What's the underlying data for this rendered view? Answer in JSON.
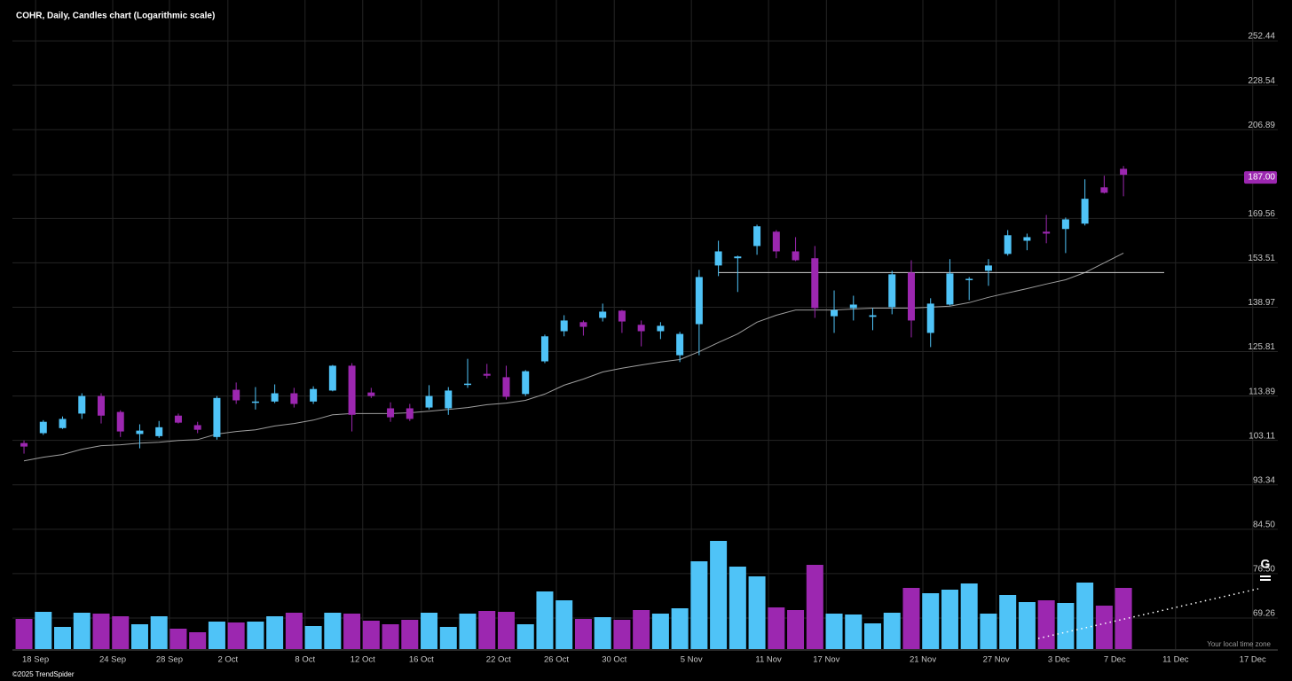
{
  "chart_data": {
    "type": "candlestick",
    "title": "COHR, Daily, Candles chart (Logarithmic scale)",
    "log_scale": true,
    "grid": true,
    "up_color": "#4fc3f7",
    "down_color": "#9c27b0",
    "open": [
      102.5,
      104.8,
      106.0,
      109.5,
      113.9,
      109.9,
      104.6,
      104.1,
      109.0,
      106.7,
      103.9,
      115.5,
      112.3,
      112.5,
      114.6,
      112.5,
      115.3,
      121.9,
      114.8,
      110.8,
      110.8,
      111.0,
      110.8,
      116.9,
      119.7,
      118.8,
      114.4,
      123.1,
      131.7,
      134.4,
      135.7,
      137.9,
      133.6,
      131.7,
      124.8,
      133.8,
      152.6,
      155.1,
      159.4,
      164.6,
      157.5,
      155.1,
      136.2,
      138.7,
      136.0,
      139.0,
      150.2,
      131.2,
      139.8,
      147.8,
      150.8,
      156.6,
      161.3,
      164.6,
      165.6,
      167.6,
      181.8,
      189.5
    ],
    "high": [
      103.1,
      107.9,
      108.8,
      114.6,
      114.6,
      110.3,
      106.9,
      107.7,
      109.5,
      107.5,
      113.9,
      117.4,
      116.2,
      116.9,
      116.0,
      116.4,
      122.1,
      122.6,
      116.0,
      112.3,
      111.9,
      116.7,
      116.2,
      123.8,
      122.4,
      121.9,
      120.7,
      130.7,
      136.5,
      134.9,
      140.1,
      138.1,
      134.9,
      134.4,
      131.5,
      151.1,
      161.3,
      156.0,
      167.2,
      165.2,
      162.6,
      159.4,
      144.3,
      142.6,
      138.7,
      150.8,
      154.4,
      141.8,
      154.8,
      148.7,
      154.8,
      165.2,
      163.9,
      170.9,
      169.9,
      185.1,
      186.6,
      190.7
    ],
    "low": [
      100.1,
      104.4,
      105.8,
      108.2,
      107.1,
      103.9,
      101.3,
      103.7,
      107.1,
      104.8,
      103.3,
      111.9,
      110.5,
      112.1,
      111.0,
      111.9,
      115.1,
      105.2,
      113.4,
      107.5,
      107.7,
      110.5,
      109.2,
      116.0,
      118.5,
      113.0,
      113.9,
      122.6,
      130.2,
      130.4,
      134.6,
      131.2,
      127.3,
      129.4,
      122.9,
      124.8,
      149.0,
      143.8,
      156.3,
      155.1,
      154.1,
      135.7,
      131.2,
      134.9,
      132.0,
      136.8,
      129.9,
      127.1,
      139.5,
      141.2,
      145.8,
      156.0,
      157.9,
      160.4,
      156.9,
      166.9,
      179.3,
      178.2
    ],
    "close": [
      101.7,
      107.5,
      108.2,
      113.9,
      109.0,
      105.2,
      105.4,
      106.2,
      107.3,
      105.6,
      113.4,
      112.8,
      112.5,
      114.6,
      111.9,
      115.7,
      121.9,
      109.2,
      113.9,
      108.6,
      108.2,
      113.9,
      115.3,
      117.1,
      119.2,
      113.7,
      120.4,
      130.2,
      134.9,
      133.0,
      137.6,
      134.6,
      131.7,
      133.3,
      130.9,
      148.7,
      157.5,
      155.7,
      166.6,
      157.5,
      154.4,
      138.7,
      138.1,
      139.8,
      136.5,
      149.6,
      134.9,
      140.1,
      149.9,
      148.1,
      152.6,
      163.3,
      162.6,
      163.9,
      169.2,
      177.2,
      179.6,
      187.0
    ],
    "ma": {
      "color": "#9e9e9e",
      "values": [
        98.5,
        99.3,
        99.9,
        101.1,
        101.9,
        102.1,
        102.5,
        102.7,
        103.1,
        103.3,
        104.6,
        105.2,
        105.6,
        106.5,
        107.1,
        107.9,
        109.2,
        109.5,
        109.5,
        109.5,
        109.7,
        110.1,
        110.5,
        111.0,
        111.7,
        112.1,
        112.8,
        114.4,
        116.7,
        118.3,
        120.2,
        121.2,
        122.1,
        122.9,
        123.6,
        125.8,
        128.4,
        130.9,
        134.4,
        136.5,
        138.1,
        138.1,
        138.1,
        138.4,
        138.7,
        138.7,
        138.7,
        139.0,
        139.3,
        140.4,
        142.1,
        143.5,
        144.9,
        146.4,
        147.8,
        150.2,
        153.5,
        156.9
      ]
    },
    "level": 150.2,
    "volume": {
      "values": [
        34,
        42,
        25,
        41,
        40,
        37,
        28,
        37,
        23,
        19,
        31,
        30,
        31,
        37,
        41,
        26,
        41,
        40,
        32,
        28,
        33,
        41,
        25,
        40,
        43,
        42,
        28,
        65,
        55,
        34,
        36,
        33,
        44,
        40,
        46,
        99,
        122,
        93,
        82,
        47,
        44,
        95,
        40,
        39,
        29,
        41,
        69,
        63,
        67,
        74,
        40,
        61,
        53,
        55,
        52,
        75,
        49,
        69
      ]
    },
    "volume_ylim": [
      0,
      240
    ],
    "ylim": [
      64.6,
      271.2
    ],
    "yticks": [
      252.44,
      228.54,
      206.89,
      {
        "value": 187,
        "label": "187.00"
      },
      169.56,
      153.51,
      138.97,
      125.81,
      113.89,
      103.11,
      93.34,
      {
        "value": 84.5,
        "label": "84.50"
      },
      {
        "value": 76.5,
        "label": "76.50"
      },
      69.26
    ],
    "xlim": [
      -0.6,
      65
    ],
    "xticks": [
      {
        "value": 0.6,
        "label": "18 Sep"
      },
      {
        "value": 4.6,
        "label": "24 Sep"
      },
      {
        "value": 7.54,
        "label": "28 Sep"
      },
      {
        "value": 10.57,
        "label": "2 Oct"
      },
      {
        "value": 14.57,
        "label": "8 Oct"
      },
      {
        "value": 17.56,
        "label": "12 Oct"
      },
      {
        "value": 20.6,
        "label": "16 Oct"
      },
      {
        "value": 24.6,
        "label": "22 Oct"
      },
      {
        "value": 27.6,
        "label": "26 Oct"
      },
      {
        "value": 30.6,
        "label": "30 Oct"
      },
      {
        "value": 34.6,
        "label": "5 Nov"
      },
      {
        "value": 38.6,
        "label": "11 Nov"
      },
      {
        "value": 41.6,
        "label": "17 Nov"
      },
      {
        "value": 46.6,
        "label": "21 Nov"
      },
      {
        "value": 50.4,
        "label": "27 Nov"
      },
      {
        "value": 53.65,
        "label": "3 Dec"
      },
      {
        "value": 56.55,
        "label": "7 Dec"
      },
      {
        "value": 59.7,
        "label": "11 Dec"
      },
      {
        "value": 63.7,
        "label": "17 Dec"
      }
    ],
    "watermark": "G",
    "copyright": "©2025 TrendSpider",
    "timezone_note": "Your local time zone"
  }
}
